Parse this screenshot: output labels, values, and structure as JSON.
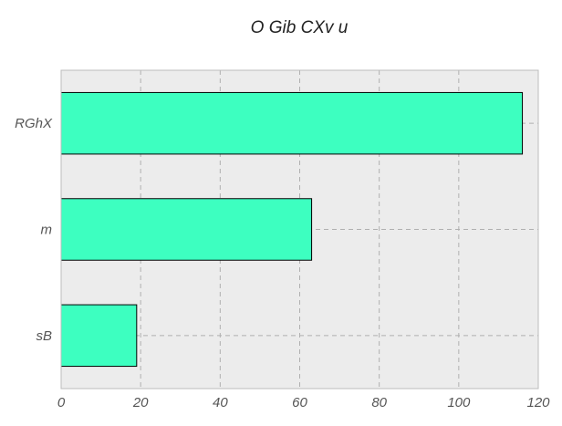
{
  "chart_data": {
    "type": "bar",
    "orientation": "horizontal",
    "title": "O Gib CXv  u",
    "xlabel": "",
    "ylabel": "",
    "categories": [
      "RGhX",
      "m",
      "sB"
    ],
    "values": [
      116,
      63,
      19
    ],
    "xlim": [
      0,
      120
    ],
    "xticks": [
      0,
      20,
      40,
      60,
      80,
      100,
      120
    ],
    "grid": true,
    "colors": {
      "bar_fill": "#3dffc0",
      "bar_edge": "#000000",
      "plot_background": "#ececec",
      "grid": "#b0b0b0",
      "axis_frame": "#bcbcbc",
      "tick_label": "#555555",
      "title": "#222222"
    }
  }
}
